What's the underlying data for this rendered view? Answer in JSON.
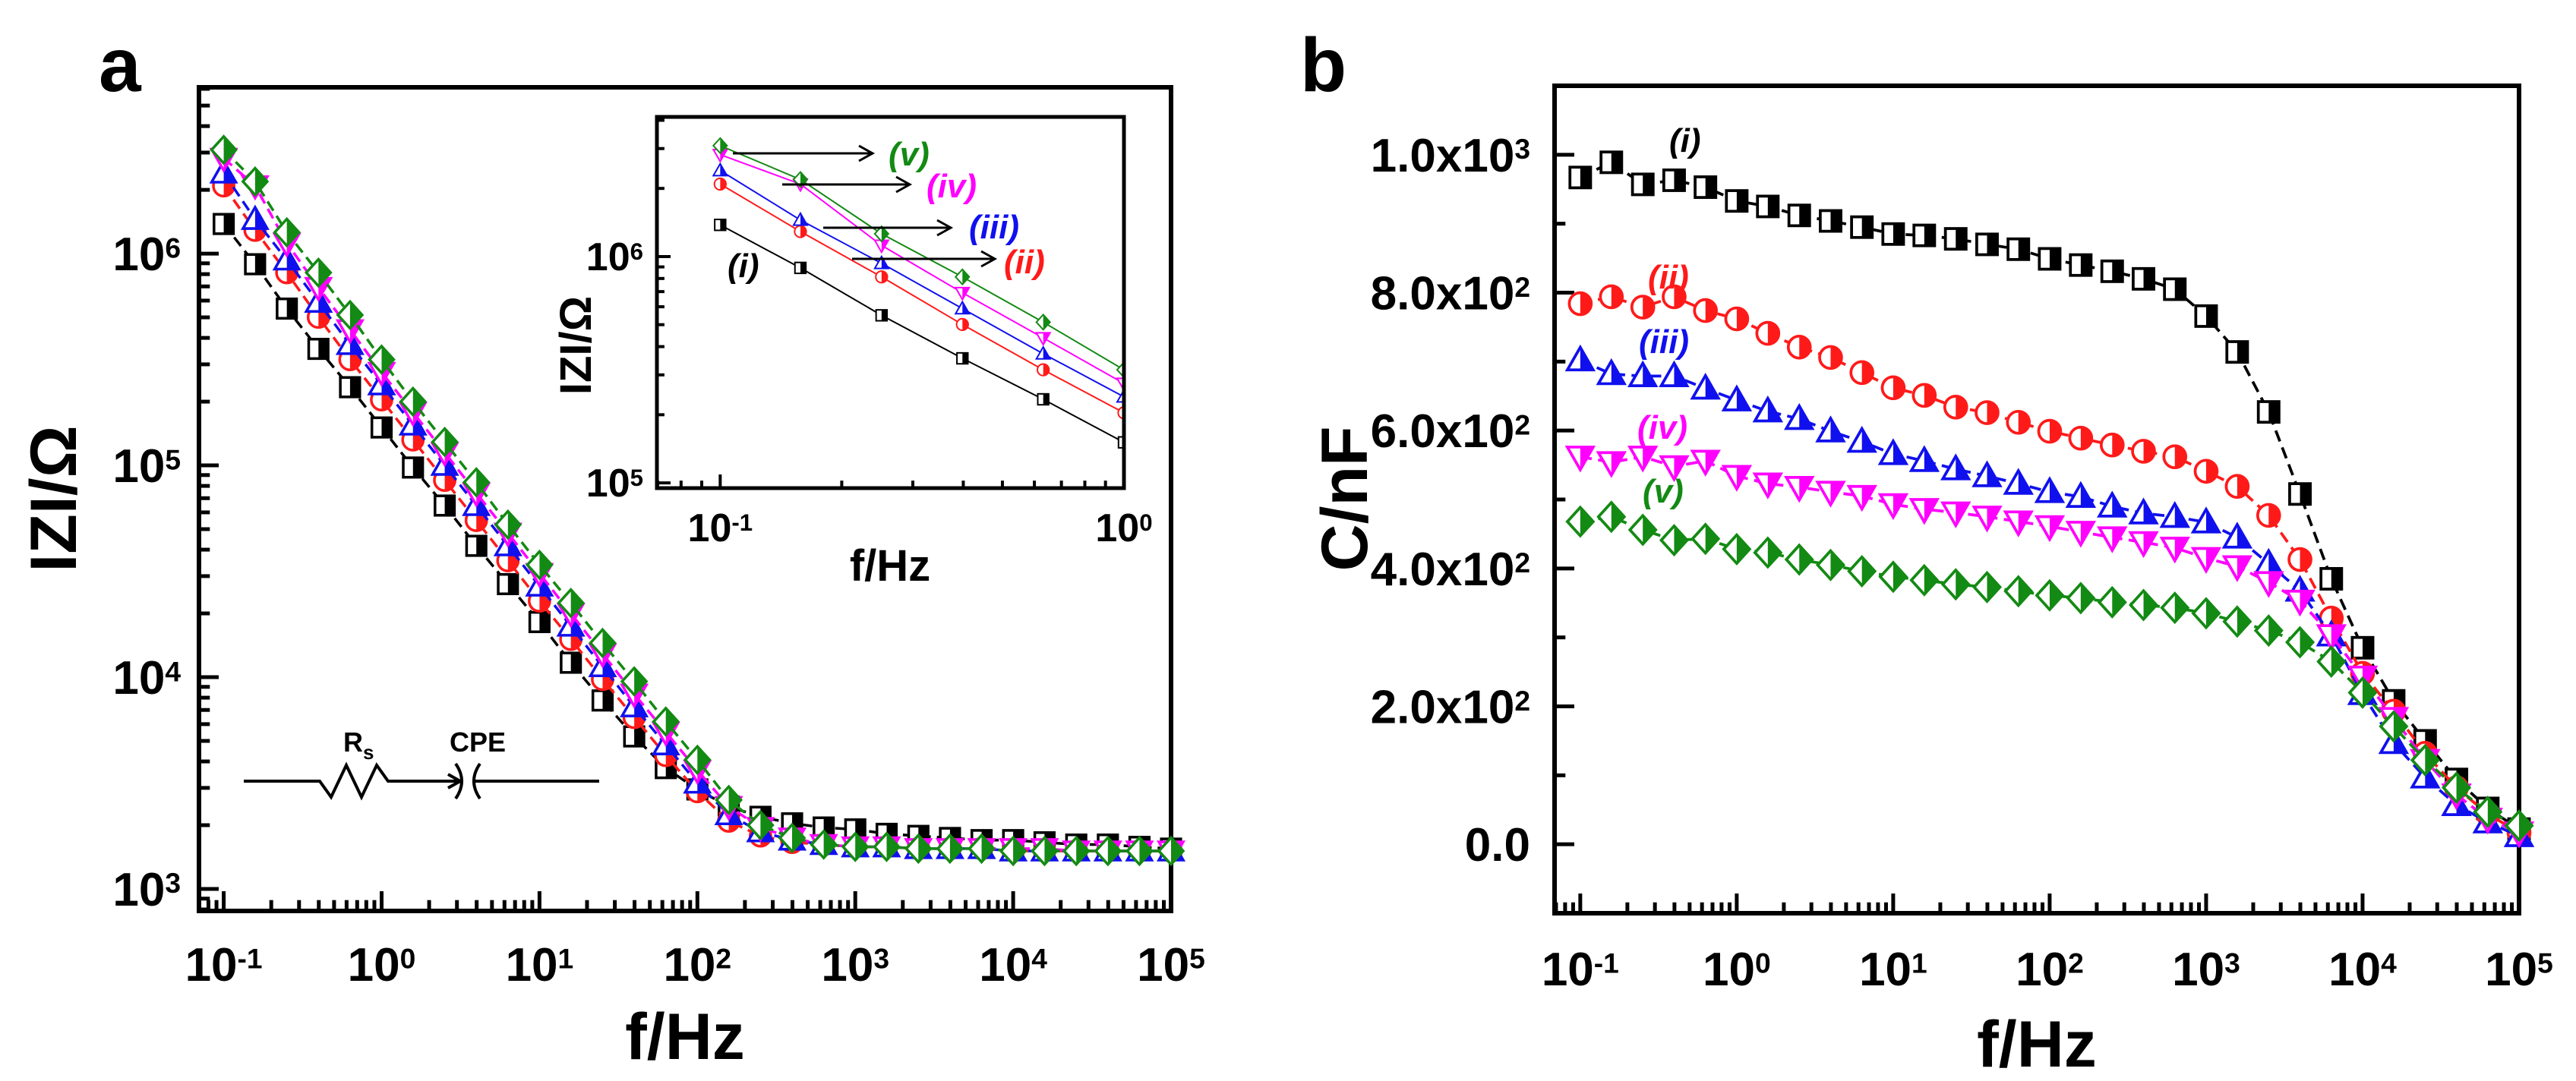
{
  "chart_data": [
    {
      "id": "a",
      "panel_label": "a",
      "type": "scatter",
      "xscale": "log",
      "yscale": "log",
      "xlabel": "f/Hz",
      "ylabel": "IZI/Ω",
      "xlim": [
        0.0697,
        100000
      ],
      "ylim": [
        787,
        6100000
      ],
      "xticks": [
        {
          "base": "10",
          "exp": "-1",
          "v": 0.1
        },
        {
          "base": "10",
          "exp": "0",
          "v": 1
        },
        {
          "base": "10",
          "exp": "1",
          "v": 10
        },
        {
          "base": "10",
          "exp": "2",
          "v": 100
        },
        {
          "base": "10",
          "exp": "3",
          "v": 1000
        },
        {
          "base": "10",
          "exp": "4",
          "v": 10000
        },
        {
          "base": "10",
          "exp": "5",
          "v": 100000
        }
      ],
      "yticks": [
        {
          "base": "10",
          "exp": "3",
          "v": 1000
        },
        {
          "base": "10",
          "exp": "4",
          "v": 10000
        },
        {
          "base": "10",
          "exp": "5",
          "v": 100000
        },
        {
          "base": "10",
          "exp": "6",
          "v": 1000000
        }
      ],
      "x": [
        0.1,
        0.158,
        0.251,
        0.398,
        0.631,
        1,
        1.58,
        2.51,
        3.98,
        6.31,
        10,
        15.8,
        25.1,
        39.8,
        63.1,
        100,
        158,
        251,
        398,
        631,
        1000,
        1580,
        2510,
        3980,
        6310,
        10000,
        15800,
        25100,
        39800,
        63100,
        100000
      ],
      "series": [
        {
          "name": "(i)",
          "color": "#000000",
          "marker": "square",
          "values": [
            1380000.0,
            891000.0,
            550000.0,
            355000.0,
            234000.0,
            151000.0,
            97700.0,
            64600.0,
            41700.0,
            27500.0,
            18200.0,
            11700.0,
            7760.0,
            5250.0,
            3720.0,
            2950.0,
            2450.0,
            2190.0,
            2040.0,
            1950.0,
            1910.0,
            1820.0,
            1780.0,
            1740.0,
            1700.0,
            1700.0,
            1660.0,
            1620.0,
            1620.0,
            1580.0,
            1550.0
          ]
        },
        {
          "name": "(ii)",
          "color": "#ff1a1a",
          "marker": "circle",
          "values": [
            2090000.0,
            1290000.0,
            813000.0,
            501000.0,
            316000.0,
            204000.0,
            132000.0,
            85100.0,
            55000.0,
            35500.0,
            22900.0,
            15100.0,
            9770.0,
            6460.0,
            4270.0,
            2880.0,
            2090.0,
            1780.0,
            1660.0,
            1620.0,
            1580.0,
            1580.0,
            1550.0,
            1550.0,
            1550.0,
            1510.0,
            1510.0,
            1510.0,
            1510.0,
            1510.0,
            1510.0
          ]
        },
        {
          "name": "(iii)",
          "color": "#1010ee",
          "marker": "triangle-up",
          "values": [
            2400000.0,
            1450000.0,
            933000.0,
            589000.0,
            372000.0,
            240000.0,
            155000.0,
            100000.0,
            64600.0,
            41700.0,
            26900.0,
            17400.0,
            11200.0,
            7240.0,
            4790.0,
            3160.0,
            2240.0,
            1860.0,
            1700.0,
            1620.0,
            1580.0,
            1580.0,
            1550.0,
            1550.0,
            1550.0,
            1510.0,
            1510.0,
            1510.0,
            1510.0,
            1510.0,
            1510.0
          ]
        },
        {
          "name": "(iv)",
          "color": "#ff00ff",
          "marker": "triangle-down",
          "values": [
            2820000.0,
            2090000.0,
            1120000.0,
            692000.0,
            437000.0,
            275000.0,
            178000.0,
            115000.0,
            74100.0,
            47900.0,
            30900.0,
            20000.0,
            12900.0,
            8320.0,
            5500.0,
            3630.0,
            2450.0,
            1950.0,
            1740.0,
            1620.0,
            1580.0,
            1580.0,
            1550.0,
            1550.0,
            1550.0,
            1550.0,
            1550.0,
            1510.0,
            1510.0,
            1510.0,
            1510.0
          ]
        },
        {
          "name": "(v)",
          "color": "#138a13",
          "marker": "diamond",
          "values": [
            3090000.0,
            2190000.0,
            1260000.0,
            813000.0,
            513000.0,
            316000.0,
            200000.0,
            129000.0,
            83200.0,
            52500.0,
            33900.0,
            22400.0,
            14500.0,
            9550.0,
            6170.0,
            4070.0,
            2630.0,
            2000.0,
            1740.0,
            1620.0,
            1580.0,
            1580.0,
            1550.0,
            1550.0,
            1550.0,
            1510.0,
            1510.0,
            1510.0,
            1510.0,
            1510.0,
            1510.0
          ]
        }
      ],
      "annotations": {
        "circuit_rs": "R",
        "circuit_rs_sub": "s",
        "circuit_cpe": "CPE"
      }
    },
    {
      "id": "a-inset",
      "type": "scatter",
      "xscale": "log",
      "yscale": "log",
      "xlabel": "f/Hz",
      "ylabel": "IZI/Ω",
      "xlim": [
        0.0697,
        1
      ],
      "ylim": [
        94800,
        4140000
      ],
      "xticks": [
        {
          "base": "10",
          "exp": "-1",
          "v": 0.1
        },
        {
          "base": "10",
          "exp": "0",
          "v": 1
        }
      ],
      "yticks": [
        {
          "base": "10",
          "exp": "5",
          "v": 100000
        },
        {
          "base": "10",
          "exp": "6",
          "v": 1000000
        }
      ],
      "points_from": "first 6 points of panel a (0.1–1 Hz)",
      "labels": [
        "(v)",
        "(iv)",
        "(iii)",
        "(ii)",
        "(i)"
      ]
    },
    {
      "id": "b",
      "panel_label": "b",
      "type": "scatter",
      "xscale": "log",
      "yscale": "linear",
      "xlabel": "f/Hz",
      "ylabel": "C/nF",
      "xlim": [
        0.0685,
        100000
      ],
      "ylim": [
        -100,
        1100
      ],
      "xticks": [
        {
          "base": "10",
          "exp": "-1",
          "v": 0.1
        },
        {
          "base": "10",
          "exp": "0",
          "v": 1
        },
        {
          "base": "10",
          "exp": "1",
          "v": 10
        },
        {
          "base": "10",
          "exp": "2",
          "v": 100
        },
        {
          "base": "10",
          "exp": "3",
          "v": 1000
        },
        {
          "base": "10",
          "exp": "4",
          "v": 10000
        },
        {
          "base": "10",
          "exp": "5",
          "v": 100000
        }
      ],
      "yticks": [
        {
          "base": "0.0",
          "exp": "",
          "v": 0
        },
        {
          "base": "2.0x10",
          "exp": "2",
          "v": 200
        },
        {
          "base": "4.0x10",
          "exp": "2",
          "v": 400
        },
        {
          "base": "6.0x10",
          "exp": "2",
          "v": 600
        },
        {
          "base": "8.0x10",
          "exp": "2",
          "v": 800
        },
        {
          "base": "1.0x10",
          "exp": "3",
          "v": 1000
        }
      ],
      "x": [
        0.1,
        0.158,
        0.251,
        0.398,
        0.631,
        1,
        1.58,
        2.51,
        3.98,
        6.31,
        10,
        15.8,
        25.1,
        39.8,
        63.1,
        100,
        158,
        251,
        398,
        631,
        1000,
        1580,
        2510,
        3980,
        6310,
        10000,
        15800,
        25100,
        39800,
        63100,
        100000
      ],
      "series": [
        {
          "name": "(i)",
          "color": "#000000",
          "marker": "square",
          "values": [
            967,
            989,
            957,
            963,
            953,
            933,
            925,
            912,
            904,
            895,
            885,
            883,
            878,
            870,
            863,
            849,
            840,
            831,
            820,
            805,
            766,
            714,
            627,
            508,
            385,
            285,
            208,
            150,
            94,
            52,
            22
          ]
        },
        {
          "name": "(ii)",
          "color": "#ff1a1a",
          "marker": "circle",
          "values": [
            784,
            794,
            779,
            794,
            774,
            762,
            741,
            721,
            706,
            684,
            662,
            651,
            634,
            626,
            612,
            599,
            589,
            579,
            570,
            562,
            541,
            519,
            477,
            413,
            328,
            248,
            193,
            132,
            82,
            44,
            17
          ]
        },
        {
          "name": "(iii)",
          "color": "#1010ee",
          "marker": "triangle-up",
          "values": [
            702,
            682,
            679,
            679,
            661,
            644,
            628,
            617,
            599,
            584,
            566,
            556,
            544,
            534,
            523,
            511,
            504,
            490,
            480,
            475,
            467,
            445,
            407,
            368,
            303,
            218,
            147,
            97,
            57,
            32,
            12
          ]
        },
        {
          "name": "(iv)",
          "color": "#ff00ff",
          "marker": "triangle-down",
          "values": [
            562,
            554,
            562,
            548,
            556,
            534,
            523,
            518,
            511,
            505,
            493,
            486,
            481,
            475,
            468,
            461,
            453,
            445,
            438,
            430,
            415,
            403,
            380,
            353,
            303,
            243,
            183,
            122,
            72,
            37,
            17
          ]
        },
        {
          "name": "(v)",
          "color": "#138a13",
          "marker": "diamond",
          "values": [
            468,
            475,
            456,
            441,
            443,
            428,
            423,
            413,
            405,
            396,
            388,
            383,
            377,
            373,
            367,
            361,
            357,
            351,
            347,
            343,
            335,
            323,
            310,
            293,
            265,
            220,
            171,
            122,
            82,
            47,
            27
          ]
        }
      ]
    }
  ]
}
